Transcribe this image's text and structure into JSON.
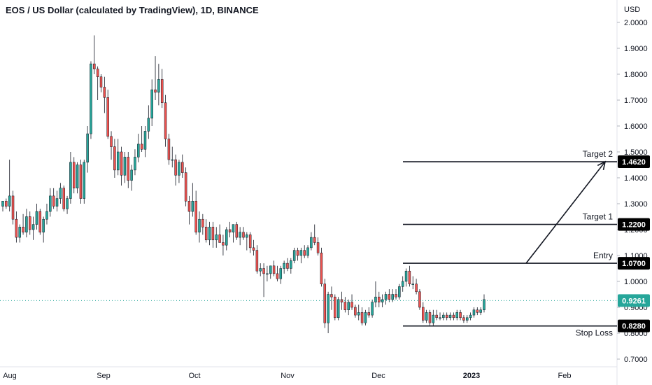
{
  "header": {
    "title": "EOS / US Dollar (calculated by TradingView), 1D, BINANCE"
  },
  "chart_data": {
    "type": "candlestick",
    "symbol": "EOS / US Dollar",
    "interval": "1D",
    "exchange": "BINANCE",
    "y_axis": {
      "currency_label": "USD",
      "ticks": [
        "2.0000",
        "1.9000",
        "1.8000",
        "1.7000",
        "1.6000",
        "1.5000",
        "1.4000",
        "1.3000",
        "1.2000",
        "1.1000",
        "1.0000",
        "0.9000",
        "0.8000",
        "0.7000"
      ],
      "range": [
        0.68,
        2.05
      ]
    },
    "x_axis": {
      "ticks": [
        "Aug",
        "Sep",
        "Oct",
        "Nov",
        "Dec",
        "2023",
        "Feb"
      ],
      "bold": [
        "2023"
      ]
    },
    "last_price": {
      "value": 0.9261,
      "label": "0.9261",
      "color": "#26a69a"
    },
    "levels": [
      {
        "name": "Target 2",
        "price": 1.462,
        "label": "1.4620"
      },
      {
        "name": "Target 1",
        "price": 1.22,
        "label": "1.2200"
      },
      {
        "name": "Entry",
        "price": 1.07,
        "label": "1.0700"
      },
      {
        "name": "Stop Loss",
        "price": 0.828,
        "label": "0.8280"
      }
    ],
    "projection_arrow": {
      "from_price": 1.07,
      "to_price": 1.462
    },
    "colors": {
      "up": "#26a69a",
      "down": "#ef5350",
      "text": "#131722"
    },
    "candles": [
      [
        1.29,
        1.31,
        1.27,
        1.31
      ],
      [
        1.31,
        1.32,
        1.28,
        1.29
      ],
      [
        1.29,
        1.47,
        1.27,
        1.33
      ],
      [
        1.33,
        1.35,
        1.22,
        1.24
      ],
      [
        1.24,
        1.27,
        1.15,
        1.17
      ],
      [
        1.17,
        1.22,
        1.15,
        1.21
      ],
      [
        1.21,
        1.26,
        1.18,
        1.19
      ],
      [
        1.19,
        1.28,
        1.17,
        1.25
      ],
      [
        1.25,
        1.27,
        1.18,
        1.2
      ],
      [
        1.2,
        1.25,
        1.16,
        1.22
      ],
      [
        1.22,
        1.3,
        1.2,
        1.27
      ],
      [
        1.27,
        1.28,
        1.18,
        1.19
      ],
      [
        1.19,
        1.25,
        1.15,
        1.24
      ],
      [
        1.24,
        1.3,
        1.22,
        1.27
      ],
      [
        1.27,
        1.36,
        1.25,
        1.33
      ],
      [
        1.33,
        1.36,
        1.28,
        1.29
      ],
      [
        1.29,
        1.35,
        1.27,
        1.32
      ],
      [
        1.32,
        1.38,
        1.3,
        1.36
      ],
      [
        1.36,
        1.37,
        1.27,
        1.28
      ],
      [
        1.28,
        1.33,
        1.26,
        1.32
      ],
      [
        1.32,
        1.5,
        1.3,
        1.46
      ],
      [
        1.46,
        1.48,
        1.34,
        1.36
      ],
      [
        1.36,
        1.46,
        1.34,
        1.45
      ],
      [
        1.45,
        1.47,
        1.3,
        1.32
      ],
      [
        1.32,
        1.47,
        1.3,
        1.46
      ],
      [
        1.46,
        1.6,
        1.42,
        1.57
      ],
      [
        1.57,
        1.85,
        1.55,
        1.84
      ],
      [
        1.84,
        1.95,
        1.8,
        1.82
      ],
      [
        1.82,
        1.83,
        1.7,
        1.79
      ],
      [
        1.79,
        1.8,
        1.73,
        1.75
      ],
      [
        1.75,
        1.79,
        1.65,
        1.71
      ],
      [
        1.71,
        1.74,
        1.55,
        1.56
      ],
      [
        1.56,
        1.58,
        1.47,
        1.52
      ],
      [
        1.52,
        1.55,
        1.4,
        1.43
      ],
      [
        1.43,
        1.55,
        1.41,
        1.5
      ],
      [
        1.5,
        1.52,
        1.37,
        1.41
      ],
      [
        1.41,
        1.5,
        1.38,
        1.48
      ],
      [
        1.48,
        1.5,
        1.36,
        1.39
      ],
      [
        1.39,
        1.45,
        1.35,
        1.43
      ],
      [
        1.43,
        1.51,
        1.41,
        1.48
      ],
      [
        1.48,
        1.57,
        1.46,
        1.53
      ],
      [
        1.53,
        1.6,
        1.5,
        1.51
      ],
      [
        1.51,
        1.6,
        1.48,
        1.58
      ],
      [
        1.58,
        1.68,
        1.55,
        1.63
      ],
      [
        1.63,
        1.78,
        1.6,
        1.74
      ],
      [
        1.74,
        1.87,
        1.7,
        1.73
      ],
      [
        1.73,
        1.84,
        1.68,
        1.78
      ],
      [
        1.78,
        1.82,
        1.67,
        1.69
      ],
      [
        1.69,
        1.72,
        1.52,
        1.55
      ],
      [
        1.55,
        1.57,
        1.45,
        1.47
      ],
      [
        1.47,
        1.52,
        1.44,
        1.47
      ],
      [
        1.47,
        1.49,
        1.37,
        1.41
      ],
      [
        1.41,
        1.47,
        1.38,
        1.46
      ],
      [
        1.46,
        1.49,
        1.4,
        1.42
      ],
      [
        1.42,
        1.44,
        1.29,
        1.31
      ],
      [
        1.31,
        1.33,
        1.22,
        1.27
      ],
      [
        1.27,
        1.38,
        1.25,
        1.31
      ],
      [
        1.31,
        1.35,
        1.18,
        1.19
      ],
      [
        1.19,
        1.27,
        1.15,
        1.24
      ],
      [
        1.24,
        1.26,
        1.18,
        1.21
      ],
      [
        1.21,
        1.24,
        1.15,
        1.16
      ],
      [
        1.16,
        1.23,
        1.14,
        1.21
      ],
      [
        1.21,
        1.23,
        1.13,
        1.16
      ],
      [
        1.16,
        1.21,
        1.13,
        1.18
      ],
      [
        1.18,
        1.22,
        1.15,
        1.15
      ],
      [
        1.15,
        1.18,
        1.1,
        1.14
      ],
      [
        1.14,
        1.21,
        1.12,
        1.2
      ],
      [
        1.2,
        1.23,
        1.17,
        1.19
      ],
      [
        1.19,
        1.22,
        1.15,
        1.22
      ],
      [
        1.22,
        1.23,
        1.16,
        1.17
      ],
      [
        1.17,
        1.21,
        1.14,
        1.19
      ],
      [
        1.19,
        1.21,
        1.16,
        1.17
      ],
      [
        1.17,
        1.19,
        1.12,
        1.18
      ],
      [
        1.18,
        1.19,
        1.11,
        1.13
      ],
      [
        1.13,
        1.16,
        1.1,
        1.12
      ],
      [
        1.12,
        1.14,
        1.03,
        1.04
      ],
      [
        1.04,
        1.07,
        1.02,
        1.05
      ],
      [
        1.05,
        1.07,
        0.94,
        1.03
      ],
      [
        1.03,
        1.06,
        1.0,
        1.03
      ],
      [
        1.03,
        1.06,
        1.01,
        1.06
      ],
      [
        1.06,
        1.08,
        1.02,
        1.03
      ],
      [
        1.03,
        1.06,
        1.0,
        1.01
      ],
      [
        1.01,
        1.06,
        0.99,
        1.05
      ],
      [
        1.05,
        1.08,
        1.03,
        1.07
      ],
      [
        1.07,
        1.09,
        1.04,
        1.05
      ],
      [
        1.05,
        1.09,
        1.03,
        1.08
      ],
      [
        1.08,
        1.13,
        1.07,
        1.12
      ],
      [
        1.12,
        1.13,
        1.08,
        1.1
      ],
      [
        1.1,
        1.13,
        1.07,
        1.12
      ],
      [
        1.12,
        1.14,
        1.09,
        1.1
      ],
      [
        1.1,
        1.14,
        1.09,
        1.13
      ],
      [
        1.13,
        1.19,
        1.12,
        1.17
      ],
      [
        1.17,
        1.22,
        1.14,
        1.15
      ],
      [
        1.15,
        1.17,
        1.1,
        1.11
      ],
      [
        1.11,
        1.13,
        0.98,
        0.99
      ],
      [
        0.99,
        1.01,
        0.82,
        0.84
      ],
      [
        0.84,
        0.96,
        0.8,
        0.95
      ],
      [
        0.95,
        0.98,
        0.89,
        0.94
      ],
      [
        0.94,
        0.95,
        0.85,
        0.86
      ],
      [
        0.86,
        0.94,
        0.85,
        0.93
      ],
      [
        0.93,
        0.96,
        0.89,
        0.92
      ],
      [
        0.92,
        0.94,
        0.88,
        0.89
      ],
      [
        0.89,
        0.93,
        0.87,
        0.92
      ],
      [
        0.92,
        0.95,
        0.89,
        0.9
      ],
      [
        0.9,
        0.91,
        0.86,
        0.87
      ],
      [
        0.87,
        0.91,
        0.85,
        0.88
      ],
      [
        0.88,
        0.9,
        0.83,
        0.84
      ],
      [
        0.84,
        0.89,
        0.83,
        0.88
      ],
      [
        0.88,
        0.9,
        0.86,
        0.87
      ],
      [
        0.87,
        0.93,
        0.86,
        0.92
      ],
      [
        0.92,
        1.0,
        0.9,
        0.94
      ],
      [
        0.94,
        0.96,
        0.9,
        0.92
      ],
      [
        0.92,
        0.95,
        0.9,
        0.93
      ],
      [
        0.93,
        0.96,
        0.91,
        0.95
      ],
      [
        0.95,
        0.97,
        0.92,
        0.93
      ],
      [
        0.93,
        0.97,
        0.92,
        0.95
      ],
      [
        0.95,
        0.97,
        0.93,
        0.94
      ],
      [
        0.94,
        0.99,
        0.93,
        0.98
      ],
      [
        0.98,
        1.02,
        0.96,
        1.0
      ],
      [
        1.0,
        1.05,
        0.98,
        1.04
      ],
      [
        1.04,
        1.06,
        0.98,
        0.99
      ],
      [
        0.99,
        1.02,
        0.97,
        0.99
      ],
      [
        0.99,
        1.01,
        0.95,
        0.96
      ],
      [
        0.96,
        0.97,
        0.89,
        0.9
      ],
      [
        0.9,
        0.92,
        0.84,
        0.85
      ],
      [
        0.85,
        0.89,
        0.84,
        0.88
      ],
      [
        0.88,
        0.89,
        0.83,
        0.84
      ],
      [
        0.84,
        0.89,
        0.83,
        0.87
      ],
      [
        0.87,
        0.89,
        0.85,
        0.86
      ],
      [
        0.86,
        0.88,
        0.85,
        0.86
      ],
      [
        0.86,
        0.88,
        0.85,
        0.87
      ],
      [
        0.87,
        0.88,
        0.85,
        0.86
      ],
      [
        0.86,
        0.88,
        0.85,
        0.87
      ],
      [
        0.87,
        0.88,
        0.85,
        0.86
      ],
      [
        0.86,
        0.89,
        0.85,
        0.88
      ],
      [
        0.88,
        0.89,
        0.85,
        0.86
      ],
      [
        0.86,
        0.87,
        0.84,
        0.85
      ],
      [
        0.85,
        0.87,
        0.84,
        0.86
      ],
      [
        0.86,
        0.88,
        0.85,
        0.87
      ],
      [
        0.87,
        0.9,
        0.86,
        0.89
      ],
      [
        0.89,
        0.9,
        0.87,
        0.88
      ],
      [
        0.88,
        0.9,
        0.87,
        0.89
      ],
      [
        0.89,
        0.95,
        0.88,
        0.93
      ]
    ]
  }
}
